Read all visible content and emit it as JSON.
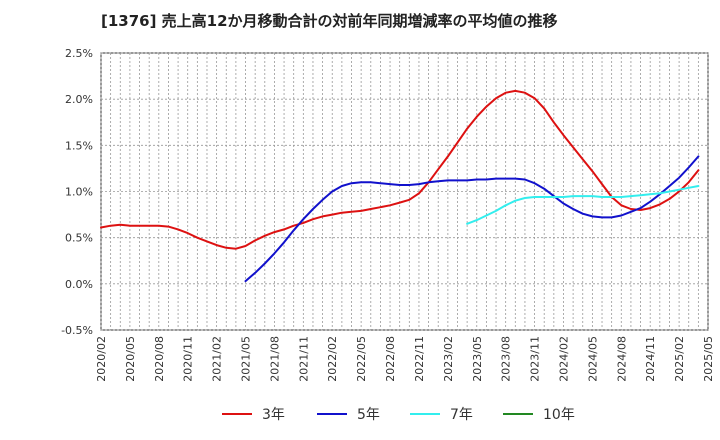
{
  "chart_data": {
    "type": "line",
    "title": "[1376]  売上高12か月移動合計の対前年同期増減率の平均値の推移",
    "xlabel": "",
    "ylabel": "",
    "ylim": [
      -0.5,
      2.5
    ],
    "yticks": [
      "2.5%",
      "2.0%",
      "1.5%",
      "1.0%",
      "0.5%",
      "0.0%",
      "-0.5%"
    ],
    "ytick_values": [
      2.5,
      2.0,
      1.5,
      1.0,
      0.5,
      0.0,
      -0.5
    ],
    "xtick_labels": [
      "2020/02",
      "2020/05",
      "2020/08",
      "2020/11",
      "2021/02",
      "2021/05",
      "2021/08",
      "2021/11",
      "2022/02",
      "2022/05",
      "2022/08",
      "2022/11",
      "2023/02",
      "2023/05",
      "2023/08",
      "2023/11",
      "2024/02",
      "2024/05",
      "2024/08",
      "2024/11",
      "2025/02",
      "2025/05"
    ],
    "x_start": "2020/02",
    "x_end": "2025/05",
    "grid": true,
    "legend_position": "bottom",
    "series": [
      {
        "name": "3年",
        "color": "#dd1111",
        "points": [
          [
            "2020/02",
            0.61
          ],
          [
            "2020/03",
            0.63
          ],
          [
            "2020/04",
            0.64
          ],
          [
            "2020/05",
            0.63
          ],
          [
            "2020/06",
            0.63
          ],
          [
            "2020/07",
            0.63
          ],
          [
            "2020/08",
            0.63
          ],
          [
            "2020/09",
            0.62
          ],
          [
            "2020/10",
            0.59
          ],
          [
            "2020/11",
            0.55
          ],
          [
            "2020/12",
            0.5
          ],
          [
            "2021/01",
            0.46
          ],
          [
            "2021/02",
            0.42
          ],
          [
            "2021/03",
            0.39
          ],
          [
            "2021/04",
            0.38
          ],
          [
            "2021/05",
            0.41
          ],
          [
            "2021/06",
            0.47
          ],
          [
            "2021/07",
            0.52
          ],
          [
            "2021/08",
            0.56
          ],
          [
            "2021/09",
            0.59
          ],
          [
            "2021/10",
            0.63
          ],
          [
            "2021/11",
            0.66
          ],
          [
            "2021/12",
            0.7
          ],
          [
            "2022/01",
            0.73
          ],
          [
            "2022/02",
            0.75
          ],
          [
            "2022/03",
            0.77
          ],
          [
            "2022/04",
            0.78
          ],
          [
            "2022/05",
            0.79
          ],
          [
            "2022/06",
            0.81
          ],
          [
            "2022/07",
            0.83
          ],
          [
            "2022/08",
            0.85
          ],
          [
            "2022/09",
            0.88
          ],
          [
            "2022/10",
            0.91
          ],
          [
            "2022/11",
            0.98
          ],
          [
            "2022/12",
            1.1
          ],
          [
            "2023/01",
            1.24
          ],
          [
            "2023/02",
            1.38
          ],
          [
            "2023/03",
            1.53
          ],
          [
            "2023/04",
            1.68
          ],
          [
            "2023/05",
            1.81
          ],
          [
            "2023/06",
            1.92
          ],
          [
            "2023/07",
            2.01
          ],
          [
            "2023/08",
            2.07
          ],
          [
            "2023/09",
            2.09
          ],
          [
            "2023/10",
            2.07
          ],
          [
            "2023/11",
            2.01
          ],
          [
            "2023/12",
            1.9
          ],
          [
            "2024/01",
            1.75
          ],
          [
            "2024/02",
            1.61
          ],
          [
            "2024/03",
            1.48
          ],
          [
            "2024/04",
            1.35
          ],
          [
            "2024/05",
            1.22
          ],
          [
            "2024/06",
            1.08
          ],
          [
            "2024/07",
            0.94
          ],
          [
            "2024/08",
            0.85
          ],
          [
            "2024/09",
            0.81
          ],
          [
            "2024/10",
            0.8
          ],
          [
            "2024/11",
            0.82
          ],
          [
            "2024/12",
            0.86
          ],
          [
            "2025/01",
            0.92
          ],
          [
            "2025/02",
            1.0
          ],
          [
            "2025/03",
            1.1
          ],
          [
            "2025/04",
            1.23
          ]
        ]
      },
      {
        "name": "5年",
        "color": "#1111cc",
        "points": [
          [
            "2021/05",
            0.03
          ],
          [
            "2021/06",
            0.12
          ],
          [
            "2021/07",
            0.22
          ],
          [
            "2021/08",
            0.33
          ],
          [
            "2021/09",
            0.45
          ],
          [
            "2021/10",
            0.58
          ],
          [
            "2021/11",
            0.7
          ],
          [
            "2021/12",
            0.81
          ],
          [
            "2022/01",
            0.91
          ],
          [
            "2022/02",
            1.0
          ],
          [
            "2022/03",
            1.06
          ],
          [
            "2022/04",
            1.09
          ],
          [
            "2022/05",
            1.1
          ],
          [
            "2022/06",
            1.1
          ],
          [
            "2022/07",
            1.09
          ],
          [
            "2022/08",
            1.08
          ],
          [
            "2022/09",
            1.07
          ],
          [
            "2022/10",
            1.07
          ],
          [
            "2022/11",
            1.08
          ],
          [
            "2022/12",
            1.1
          ],
          [
            "2023/01",
            1.11
          ],
          [
            "2023/02",
            1.12
          ],
          [
            "2023/03",
            1.12
          ],
          [
            "2023/04",
            1.12
          ],
          [
            "2023/05",
            1.13
          ],
          [
            "2023/06",
            1.13
          ],
          [
            "2023/07",
            1.14
          ],
          [
            "2023/08",
            1.14
          ],
          [
            "2023/09",
            1.14
          ],
          [
            "2023/10",
            1.13
          ],
          [
            "2023/11",
            1.09
          ],
          [
            "2023/12",
            1.03
          ],
          [
            "2024/01",
            0.95
          ],
          [
            "2024/02",
            0.87
          ],
          [
            "2024/03",
            0.81
          ],
          [
            "2024/04",
            0.76
          ],
          [
            "2024/05",
            0.73
          ],
          [
            "2024/06",
            0.72
          ],
          [
            "2024/07",
            0.72
          ],
          [
            "2024/08",
            0.74
          ],
          [
            "2024/09",
            0.78
          ],
          [
            "2024/10",
            0.82
          ],
          [
            "2024/11",
            0.89
          ],
          [
            "2024/12",
            0.97
          ],
          [
            "2025/01",
            1.06
          ],
          [
            "2025/02",
            1.15
          ],
          [
            "2025/03",
            1.26
          ],
          [
            "2025/04",
            1.38
          ]
        ]
      },
      {
        "name": "7年",
        "color": "#33eeee",
        "points": [
          [
            "2023/04",
            0.65
          ],
          [
            "2023/05",
            0.69
          ],
          [
            "2023/06",
            0.74
          ],
          [
            "2023/07",
            0.79
          ],
          [
            "2023/08",
            0.85
          ],
          [
            "2023/09",
            0.9
          ],
          [
            "2023/10",
            0.93
          ],
          [
            "2023/11",
            0.94
          ],
          [
            "2023/12",
            0.94
          ],
          [
            "2024/01",
            0.94
          ],
          [
            "2024/02",
            0.94
          ],
          [
            "2024/03",
            0.95
          ],
          [
            "2024/04",
            0.95
          ],
          [
            "2024/05",
            0.95
          ],
          [
            "2024/06",
            0.94
          ],
          [
            "2024/07",
            0.94
          ],
          [
            "2024/08",
            0.94
          ],
          [
            "2024/09",
            0.95
          ],
          [
            "2024/10",
            0.96
          ],
          [
            "2024/11",
            0.97
          ],
          [
            "2024/12",
            0.98
          ],
          [
            "2025/01",
            1.0
          ],
          [
            "2025/02",
            1.02
          ],
          [
            "2025/03",
            1.04
          ],
          [
            "2025/04",
            1.06
          ]
        ]
      },
      {
        "name": "10年",
        "color": "#228822",
        "points": []
      }
    ]
  }
}
